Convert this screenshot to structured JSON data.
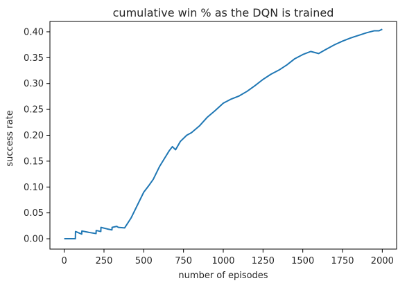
{
  "chart_data": {
    "type": "line",
    "title": "cumulative win % as the DQN is trained",
    "xlabel": "number of episodes",
    "ylabel": "success rate",
    "xlim": [
      -90,
      2090
    ],
    "ylim": [
      -0.02,
      0.42
    ],
    "xticks": [
      0,
      250,
      500,
      750,
      1000,
      1250,
      1500,
      1750,
      2000
    ],
    "yticks": [
      0.0,
      0.05,
      0.1,
      0.15,
      0.2,
      0.25,
      0.3,
      0.35,
      0.4
    ],
    "xtick_labels": [
      "0",
      "250",
      "500",
      "750",
      "1000",
      "1250",
      "1500",
      "1750",
      "2000"
    ],
    "ytick_labels": [
      "0.00",
      "0.05",
      "0.10",
      "0.15",
      "0.20",
      "0.25",
      "0.30",
      "0.35",
      "0.40"
    ],
    "grid": false,
    "series": [
      {
        "color": "#1f77b4",
        "x": [
          0,
          70,
          71,
          110,
          111,
          160,
          200,
          201,
          230,
          231,
          270,
          300,
          301,
          330,
          340,
          380,
          420,
          460,
          500,
          530,
          560,
          600,
          630,
          660,
          680,
          700,
          730,
          770,
          800,
          850,
          900,
          950,
          1000,
          1050,
          1100,
          1150,
          1200,
          1250,
          1300,
          1350,
          1400,
          1450,
          1500,
          1550,
          1600,
          1640,
          1700,
          1750,
          1800,
          1850,
          1900,
          1950,
          1980,
          2000
        ],
        "y": [
          0.0,
          0.0,
          0.014,
          0.009,
          0.015,
          0.012,
          0.01,
          0.016,
          0.014,
          0.022,
          0.019,
          0.017,
          0.022,
          0.024,
          0.022,
          0.021,
          0.04,
          0.065,
          0.09,
          0.102,
          0.115,
          0.14,
          0.155,
          0.17,
          0.178,
          0.172,
          0.188,
          0.2,
          0.205,
          0.218,
          0.235,
          0.248,
          0.262,
          0.27,
          0.276,
          0.285,
          0.296,
          0.308,
          0.318,
          0.326,
          0.336,
          0.348,
          0.356,
          0.362,
          0.358,
          0.365,
          0.375,
          0.382,
          0.388,
          0.393,
          0.398,
          0.402,
          0.402,
          0.405
        ]
      }
    ]
  }
}
